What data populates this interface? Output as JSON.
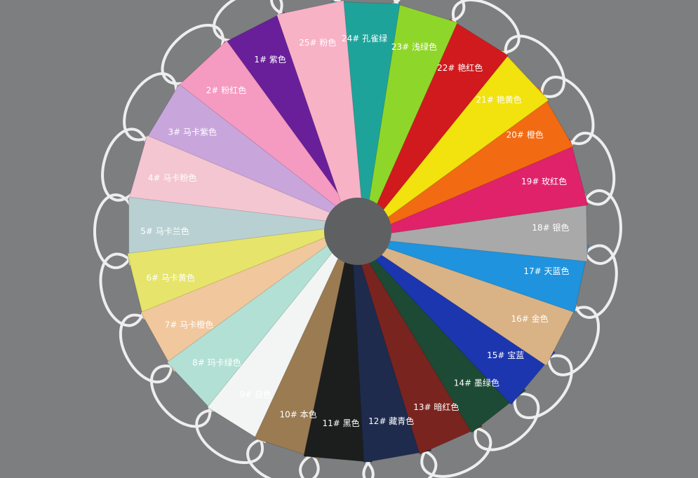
{
  "background_color": "#7d7e80",
  "bags": [
    {
      "label": "1# 紫色",
      "color": "#6a1f9a",
      "angle": -117
    },
    {
      "label": "2# 粉红色",
      "color": "#f59ac0",
      "angle": -133
    },
    {
      "label": "3# 马卡紫色",
      "color": "#c8a6dc",
      "angle": -149
    },
    {
      "label": "4# 马卡粉色",
      "color": "#f4c6d2",
      "angle": -164
    },
    {
      "label": "5# 马卡兰色",
      "color": "#b9d0d3",
      "angle": 180
    },
    {
      "label": "6# 马卡黄色",
      "color": "#e6e46a",
      "angle": 166
    },
    {
      "label": "7# 马卡橙色",
      "color": "#f1c79e",
      "angle": 151
    },
    {
      "label": "8# 玛卡绿色",
      "color": "#b3e0d4",
      "angle": 137
    },
    {
      "label": "9# 白色",
      "color": "#f3f5f4",
      "angle": 122
    },
    {
      "label": "10# 本色",
      "color": "#9a7b52",
      "angle": 108
    },
    {
      "label": "11# 黑色",
      "color": "#1c1e1e",
      "angle": 95
    },
    {
      "label": "12# 藏青色",
      "color": "#1e2b4d",
      "angle": 80
    },
    {
      "label": "13# 暗红色",
      "color": "#7a2420",
      "angle": 66
    },
    {
      "label": "14# 墨绿色",
      "color": "#1d4a35",
      "angle": 52
    },
    {
      "label": "15# 宝蓝",
      "color": "#1c36b0",
      "angle": 40
    },
    {
      "label": "16# 金色",
      "color": "#d9b386",
      "angle": 27
    },
    {
      "label": "17# 天蓝色",
      "color": "#1f93dd",
      "angle": 12
    },
    {
      "label": "18# 银色",
      "color": "#a9a9a9",
      "angle": -1
    },
    {
      "label": "19# 玫红色",
      "color": "#e0226b",
      "angle": -15
    },
    {
      "label": "20# 橙色",
      "color": "#f26a12",
      "angle": -30
    },
    {
      "label": "21# 艳黄色",
      "color": "#f2e20e",
      "angle": -43
    },
    {
      "label": "22# 艳红色",
      "color": "#d11a1e",
      "angle": -58
    },
    {
      "label": "23# 浅绿色",
      "color": "#8fd62b",
      "angle": -73
    },
    {
      "label": "24# 孔雀绿",
      "color": "#1ea39a",
      "angle": -88
    },
    {
      "label": "25# 粉色",
      "color": "#f7b2c6",
      "angle": -102
    }
  ]
}
